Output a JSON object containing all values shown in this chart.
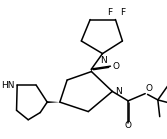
{
  "bg_color": "#ffffff",
  "line_color": "#000000",
  "lw": 1.1,
  "fs": 6.5,
  "figsize": [
    1.67,
    1.39
  ],
  "dpi": 100,
  "xlim": [
    0,
    10
  ],
  "ylim": [
    0,
    8.3
  ]
}
